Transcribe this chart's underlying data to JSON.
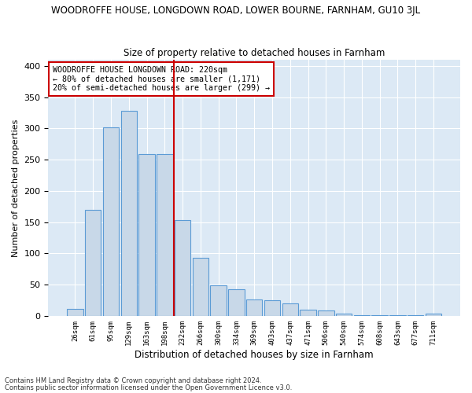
{
  "title_line1": "WOODROFFE HOUSE, LONGDOWN ROAD, LOWER BOURNE, FARNHAM, GU10 3JL",
  "title_line2": "Size of property relative to detached houses in Farnham",
  "xlabel": "Distribution of detached houses by size in Farnham",
  "ylabel": "Number of detached properties",
  "categories": [
    "26sqm",
    "61sqm",
    "95sqm",
    "129sqm",
    "163sqm",
    "198sqm",
    "232sqm",
    "266sqm",
    "300sqm",
    "334sqm",
    "369sqm",
    "403sqm",
    "437sqm",
    "471sqm",
    "506sqm",
    "540sqm",
    "574sqm",
    "608sqm",
    "643sqm",
    "677sqm",
    "711sqm"
  ],
  "values": [
    11,
    170,
    302,
    328,
    259,
    259,
    153,
    93,
    49,
    43,
    26,
    25,
    20,
    10,
    9,
    4,
    1,
    1,
    1,
    1,
    3
  ],
  "bar_color": "#c8d8e8",
  "bar_edge_color": "#5b9bd5",
  "vline_x": 5.5,
  "vline_color": "#cc0000",
  "annotation_text": "WOODROFFE HOUSE LONGDOWN ROAD: 220sqm\n← 80% of detached houses are smaller (1,171)\n20% of semi-detached houses are larger (299) →",
  "annotation_box_color": "#ffffff",
  "annotation_box_edge": "#cc0000",
  "footnote1": "Contains HM Land Registry data © Crown copyright and database right 2024.",
  "footnote2": "Contains public sector information licensed under the Open Government Licence v3.0.",
  "plot_bg_color": "#dce9f5",
  "ylim": [
    0,
    410
  ],
  "yticks": [
    0,
    50,
    100,
    150,
    200,
    250,
    300,
    350,
    400
  ]
}
